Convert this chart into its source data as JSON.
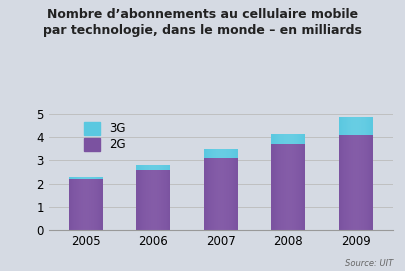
{
  "title_line1": "Nombre d’abonnements au cellulaire mobile",
  "title_line2": "par technologie, dans le monde – en milliards",
  "years": [
    "2005",
    "2006",
    "2007",
    "2008",
    "2009"
  ],
  "values_2g": [
    2.2,
    2.6,
    3.1,
    3.7,
    4.1
  ],
  "values_3g": [
    0.07,
    0.2,
    0.38,
    0.45,
    0.78
  ],
  "color_2g": "#7B52A0",
  "color_2g_light": "#A07BC0",
  "color_3g": "#5AC8E0",
  "color_3g_light": "#90DFF0",
  "legend_3g": "3G",
  "legend_2g": "2G",
  "ylim": [
    0,
    5
  ],
  "yticks": [
    0,
    1,
    2,
    3,
    4,
    5
  ],
  "background_color": "#D5DAE3",
  "plot_bg_color": "#D5DAE3",
  "source_text": "Source: UIT",
  "bar_width": 0.5
}
